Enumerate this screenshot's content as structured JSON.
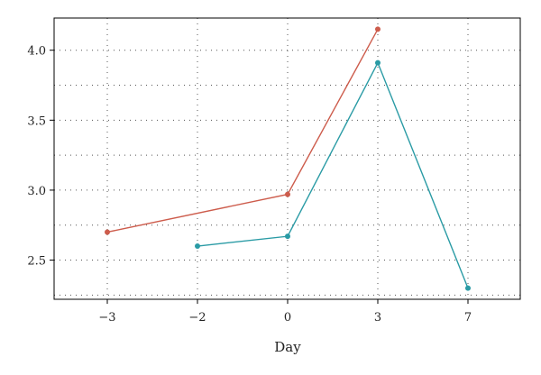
{
  "chart_data": {
    "type": "line",
    "xlabel": "Day",
    "ylabel": "",
    "categories": [
      "-3",
      "-2",
      "0",
      "3",
      "7"
    ],
    "x_tick_labels": [
      "−3",
      "−2",
      "0",
      "3",
      "7"
    ],
    "y_ticks": [
      2.5,
      3.0,
      3.5,
      4.0
    ],
    "y_tick_labels": [
      "2.5",
      "3.0",
      "3.5",
      "4.0"
    ],
    "ylim": [
      2.22,
      4.23
    ],
    "grid": true,
    "series": [
      {
        "color": "#cd5c4c",
        "points": [
          {
            "x": "-3",
            "y": 2.7
          },
          {
            "x": "0",
            "y": 2.97
          },
          {
            "x": "3",
            "y": 4.15
          }
        ]
      },
      {
        "color": "#2a9ba5",
        "points": [
          {
            "x": "-2",
            "y": 2.6
          },
          {
            "x": "0",
            "y": 2.67
          },
          {
            "x": "3",
            "y": 3.91
          },
          {
            "x": "7",
            "y": 2.3
          }
        ]
      }
    ]
  }
}
